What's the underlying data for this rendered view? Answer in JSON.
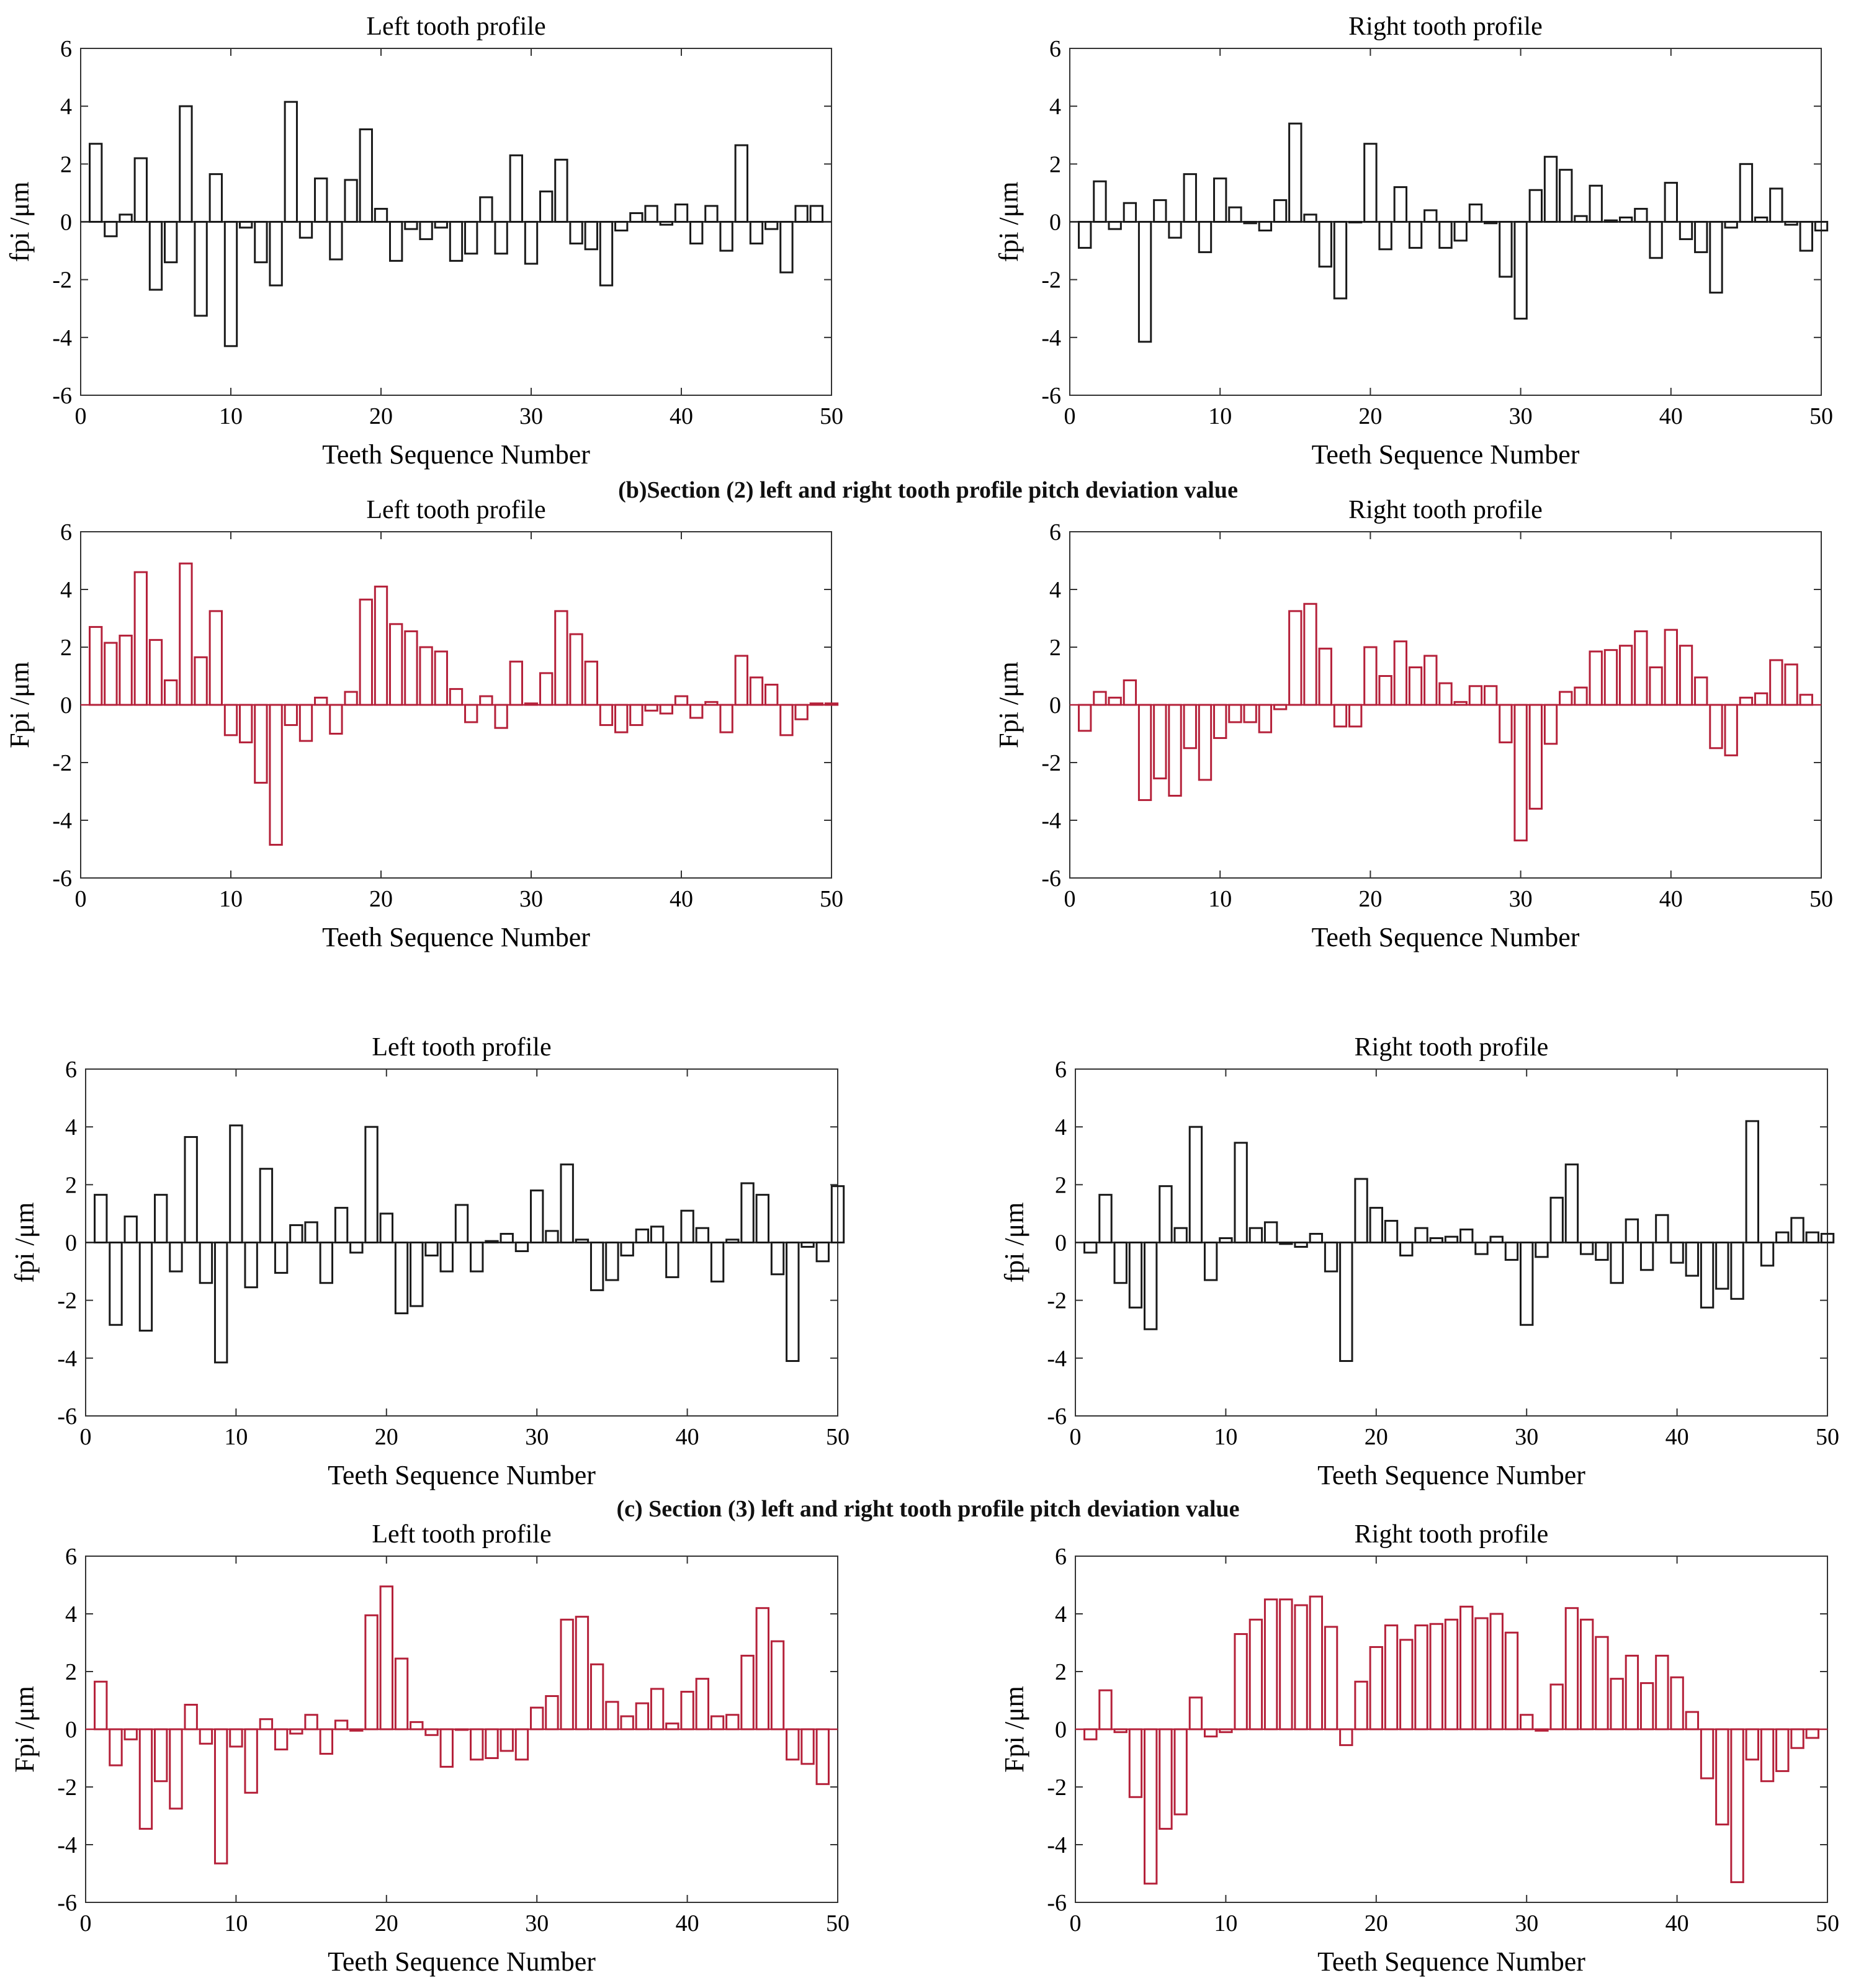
{
  "captions": [
    "(b)Section (2) left and right tooth profile pitch deviation value",
    "(c) Section (3) left and right tooth profile pitch deviation value"
  ],
  "colors": {
    "black_bars": "#1a1a1a",
    "red_bars": "#b5213a",
    "axis": "#333333"
  },
  "chart_data": [
    {
      "type": "bar",
      "title": "Left tooth profile",
      "ylabel": "fpi /μm",
      "xlabel": "Teeth Sequence Number",
      "xlim": [
        0,
        50
      ],
      "ylim": [
        -6,
        6
      ],
      "xticks": [
        0,
        10,
        20,
        30,
        40,
        50
      ],
      "yticks": [
        -6,
        -4,
        -2,
        0,
        2,
        4,
        6
      ],
      "color": "black",
      "x": [
        1,
        2,
        3,
        4,
        5,
        6,
        7,
        8,
        9,
        10,
        11,
        12,
        13,
        14,
        15,
        16,
        17,
        18,
        19,
        20,
        21,
        22,
        23,
        24,
        25,
        26,
        27,
        28,
        29,
        30,
        31,
        32,
        33,
        34,
        35,
        36,
        37,
        38,
        39,
        40,
        41,
        42,
        43,
        44,
        45,
        46,
        47,
        48,
        49
      ],
      "values": [
        2.7,
        -0.5,
        0.25,
        2.2,
        -2.35,
        -1.4,
        4.0,
        -3.25,
        1.65,
        -4.3,
        -0.2,
        -1.4,
        -2.2,
        4.15,
        -0.55,
        1.5,
        -1.3,
        1.45,
        3.2,
        0.45,
        -1.35,
        -0.25,
        -0.6,
        -0.2,
        -1.35,
        -1.1,
        0.85,
        -1.1,
        2.3,
        -1.45,
        1.05,
        2.15,
        -0.75,
        -0.95,
        -2.2,
        -0.3,
        0.3,
        0.55,
        -0.1,
        0.6,
        -0.75,
        0.55,
        -1.0,
        2.65,
        -0.75,
        -0.25,
        -1.75,
        0.55,
        0.55
      ]
    },
    {
      "type": "bar",
      "title": "Right tooth profile",
      "ylabel": "fpi /μm",
      "xlabel": "Teeth Sequence Number",
      "xlim": [
        0,
        50
      ],
      "ylim": [
        -6,
        6
      ],
      "xticks": [
        0,
        10,
        20,
        30,
        40,
        50
      ],
      "yticks": [
        -6,
        -4,
        -2,
        0,
        2,
        4,
        6
      ],
      "color": "black",
      "x": [
        1,
        2,
        3,
        4,
        5,
        6,
        7,
        8,
        9,
        10,
        11,
        12,
        13,
        14,
        15,
        16,
        17,
        18,
        19,
        20,
        21,
        22,
        23,
        24,
        25,
        26,
        27,
        28,
        29,
        30,
        31,
        32,
        33,
        34,
        35,
        36,
        37,
        38,
        39,
        40,
        41,
        42,
        43,
        44,
        45,
        46,
        47,
        48,
        49,
        50
      ],
      "values": [
        -0.9,
        1.4,
        -0.25,
        0.65,
        -4.15,
        0.75,
        -0.55,
        1.65,
        -1.05,
        1.5,
        0.5,
        -0.05,
        -0.3,
        0.75,
        3.4,
        0.25,
        -1.55,
        -2.65,
        0.0,
        2.7,
        -0.95,
        1.2,
        -0.9,
        0.4,
        -0.9,
        -0.65,
        0.6,
        -0.05,
        -1.9,
        -3.35,
        1.1,
        2.25,
        1.8,
        0.2,
        1.25,
        0.05,
        0.15,
        0.45,
        -1.25,
        1.35,
        -0.6,
        -1.05,
        -2.45,
        -0.2,
        2.0,
        0.15,
        1.15,
        -0.1,
        -1.0,
        -0.3
      ]
    },
    {
      "type": "bar",
      "title": "Left tooth profile",
      "ylabel": "Fpi /μm",
      "xlabel": "Teeth Sequence Number",
      "xlim": [
        0,
        50
      ],
      "ylim": [
        -6,
        6
      ],
      "xticks": [
        0,
        10,
        20,
        30,
        40,
        50
      ],
      "yticks": [
        -6,
        -4,
        -2,
        0,
        2,
        4,
        6
      ],
      "color": "red",
      "x": [
        1,
        2,
        3,
        4,
        5,
        6,
        7,
        8,
        9,
        10,
        11,
        12,
        13,
        14,
        15,
        16,
        17,
        18,
        19,
        20,
        21,
        22,
        23,
        24,
        25,
        26,
        27,
        28,
        29,
        30,
        31,
        32,
        33,
        34,
        35,
        36,
        37,
        38,
        39,
        40,
        41,
        42,
        43,
        44,
        45,
        46,
        47,
        48,
        49,
        50
      ],
      "values": [
        2.7,
        2.15,
        2.4,
        4.6,
        2.25,
        0.85,
        4.9,
        1.65,
        3.25,
        -1.05,
        -1.3,
        -2.7,
        -4.85,
        -0.7,
        -1.25,
        0.25,
        -1.0,
        0.45,
        3.65,
        4.1,
        2.8,
        2.55,
        2.0,
        1.85,
        0.55,
        -0.6,
        0.3,
        -0.8,
        1.5,
        0.05,
        1.1,
        3.25,
        2.45,
        1.5,
        -0.7,
        -0.95,
        -0.7,
        -0.2,
        -0.3,
        0.3,
        -0.45,
        0.1,
        -0.95,
        1.7,
        0.95,
        0.7,
        -1.05,
        -0.5,
        0.05,
        0.05
      ]
    },
    {
      "type": "bar",
      "title": "Right tooth profile",
      "ylabel": "Fpi /μm",
      "xlabel": "Teeth Sequence Number",
      "xlim": [
        0,
        50
      ],
      "ylim": [
        -6,
        6
      ],
      "xticks": [
        0,
        10,
        20,
        30,
        40,
        50
      ],
      "yticks": [
        -6,
        -4,
        -2,
        0,
        2,
        4,
        6
      ],
      "color": "red",
      "x": [
        1,
        2,
        3,
        4,
        5,
        6,
        7,
        8,
        9,
        10,
        11,
        12,
        13,
        14,
        15,
        16,
        17,
        18,
        19,
        20,
        21,
        22,
        23,
        24,
        25,
        26,
        27,
        28,
        29,
        30,
        31,
        32,
        33,
        34,
        35,
        36,
        37,
        38,
        39,
        40,
        41,
        42,
        43,
        44,
        45,
        46,
        47,
        48,
        49
      ],
      "values": [
        -0.9,
        0.45,
        0.25,
        0.85,
        -3.3,
        -2.55,
        -3.15,
        -1.5,
        -2.6,
        -1.15,
        -0.6,
        -0.6,
        -0.95,
        -0.15,
        3.25,
        3.5,
        1.95,
        -0.75,
        -0.75,
        2.0,
        1.0,
        2.2,
        1.3,
        1.7,
        0.75,
        0.1,
        0.65,
        0.65,
        -1.3,
        -4.7,
        -3.6,
        -1.35,
        0.45,
        0.6,
        1.85,
        1.9,
        2.05,
        2.55,
        1.3,
        2.6,
        2.05,
        0.95,
        -1.5,
        -1.75,
        0.25,
        0.4,
        1.55,
        1.4,
        0.35
      ]
    },
    {
      "type": "bar",
      "title": "Left tooth profile",
      "ylabel": "fpi /μm",
      "xlabel": "Teeth Sequence Number",
      "xlim": [
        0,
        50
      ],
      "ylim": [
        -6,
        6
      ],
      "xticks": [
        0,
        10,
        20,
        30,
        40,
        50
      ],
      "yticks": [
        -6,
        -4,
        -2,
        0,
        2,
        4,
        6
      ],
      "color": "black",
      "x": [
        1,
        2,
        3,
        4,
        5,
        6,
        7,
        8,
        9,
        10,
        11,
        12,
        13,
        14,
        15,
        16,
        17,
        18,
        19,
        20,
        21,
        22,
        23,
        24,
        25,
        26,
        27,
        28,
        29,
        30,
        31,
        32,
        33,
        34,
        35,
        36,
        37,
        38,
        39,
        40,
        41,
        42,
        43,
        44,
        45,
        46,
        47,
        48,
        49,
        50
      ],
      "values": [
        1.65,
        -2.85,
        0.9,
        -3.05,
        1.65,
        -1.0,
        3.65,
        -1.4,
        -4.15,
        4.05,
        -1.55,
        2.55,
        -1.05,
        0.6,
        0.7,
        -1.4,
        1.2,
        -0.35,
        4.0,
        1.0,
        -2.45,
        -2.2,
        -0.45,
        -1.0,
        1.3,
        -1.0,
        0.05,
        0.3,
        -0.3,
        1.8,
        0.4,
        2.7,
        0.1,
        -1.65,
        -1.3,
        -0.45,
        0.45,
        0.55,
        -1.2,
        1.1,
        0.5,
        -1.35,
        0.1,
        2.05,
        1.65,
        -1.1,
        -4.1,
        -0.15,
        -0.65,
        1.95
      ]
    },
    {
      "type": "bar",
      "title": "Right tooth profile",
      "ylabel": "fpi /μm",
      "xlabel": "Teeth Sequence Number",
      "xlim": [
        0,
        50
      ],
      "ylim": [
        -6,
        6
      ],
      "xticks": [
        0,
        10,
        20,
        30,
        40,
        50
      ],
      "yticks": [
        -6,
        -4,
        -2,
        0,
        2,
        4,
        6
      ],
      "color": "black",
      "x": [
        1,
        2,
        3,
        4,
        5,
        6,
        7,
        8,
        9,
        10,
        11,
        12,
        13,
        14,
        15,
        16,
        17,
        18,
        19,
        20,
        21,
        22,
        23,
        24,
        25,
        26,
        27,
        28,
        29,
        30,
        31,
        32,
        33,
        34,
        35,
        36,
        37,
        38,
        39,
        40,
        41,
        42,
        43,
        44,
        45,
        46,
        47,
        48,
        49,
        50
      ],
      "values": [
        -0.35,
        1.65,
        -1.4,
        -2.25,
        -3.0,
        1.95,
        0.5,
        4.0,
        -1.3,
        0.15,
        3.45,
        0.5,
        0.7,
        -0.05,
        -0.15,
        0.3,
        -1.0,
        -4.1,
        2.2,
        1.2,
        0.75,
        -0.45,
        0.5,
        0.15,
        0.2,
        0.45,
        -0.4,
        0.2,
        -0.6,
        -2.85,
        -0.5,
        1.55,
        2.7,
        -0.4,
        -0.6,
        -1.4,
        0.8,
        -0.95,
        0.95,
        -0.7,
        -1.15,
        -2.25,
        -1.6,
        -1.95,
        4.2,
        -0.8,
        0.35,
        0.85,
        0.35,
        0.3
      ]
    },
    {
      "type": "bar",
      "title": "Left tooth profile",
      "ylabel": "Fpi /μm",
      "xlabel": "Teeth Sequence Number",
      "xlim": [
        0,
        50
      ],
      "ylim": [
        -6,
        6
      ],
      "xticks": [
        0,
        10,
        20,
        30,
        40,
        50
      ],
      "yticks": [
        -6,
        -4,
        -2,
        0,
        2,
        4,
        6
      ],
      "color": "red",
      "x": [
        1,
        2,
        3,
        4,
        5,
        6,
        7,
        8,
        9,
        10,
        11,
        12,
        13,
        14,
        15,
        16,
        17,
        18,
        19,
        20,
        21,
        22,
        23,
        24,
        25,
        26,
        27,
        28,
        29,
        30,
        31,
        32,
        33,
        34,
        35,
        36,
        37,
        38,
        39,
        40,
        41,
        42,
        43,
        44,
        45,
        46,
        47,
        48,
        49
      ],
      "values": [
        1.65,
        -1.25,
        -0.35,
        -3.45,
        -1.8,
        -2.75,
        0.85,
        -0.5,
        -4.65,
        -0.6,
        -2.2,
        0.35,
        -0.7,
        -0.15,
        0.5,
        -0.85,
        0.3,
        -0.05,
        3.95,
        4.95,
        2.45,
        0.25,
        -0.2,
        -1.3,
        0.0,
        -1.05,
        -1.0,
        -0.75,
        -1.05,
        0.75,
        1.15,
        3.8,
        3.9,
        2.25,
        0.95,
        0.45,
        0.9,
        1.4,
        0.2,
        1.3,
        1.75,
        0.45,
        0.5,
        2.55,
        4.2,
        3.05,
        -1.05,
        -1.2,
        -1.9
      ]
    },
    {
      "type": "bar",
      "title": "Right tooth profile",
      "ylabel": "Fpi /μm",
      "xlabel": "Teeth Sequence Number",
      "xlim": [
        0,
        50
      ],
      "ylim": [
        -6,
        6
      ],
      "xticks": [
        0,
        10,
        20,
        30,
        40,
        50
      ],
      "yticks": [
        -6,
        -4,
        -2,
        0,
        2,
        4,
        6
      ],
      "color": "red",
      "x": [
        1,
        2,
        3,
        4,
        5,
        6,
        7,
        8,
        9,
        10,
        11,
        12,
        13,
        14,
        15,
        16,
        17,
        18,
        19,
        20,
        21,
        22,
        23,
        24,
        25,
        26,
        27,
        28,
        29,
        30,
        31,
        32,
        33,
        34,
        35,
        36,
        37,
        38,
        39,
        40,
        41,
        42,
        43,
        44,
        45,
        46,
        47,
        48,
        49
      ],
      "values": [
        -0.35,
        1.35,
        -0.1,
        -2.35,
        -5.35,
        -3.45,
        -2.95,
        1.1,
        -0.25,
        -0.1,
        3.3,
        3.8,
        4.5,
        4.5,
        4.3,
        4.6,
        3.55,
        -0.55,
        1.65,
        2.85,
        3.6,
        3.1,
        3.6,
        3.65,
        3.8,
        4.25,
        3.85,
        4.0,
        3.35,
        0.5,
        -0.05,
        1.55,
        4.2,
        3.8,
        3.2,
        1.75,
        2.55,
        1.6,
        2.55,
        1.8,
        0.6,
        -1.7,
        -3.3,
        -5.3,
        -1.05,
        -1.8,
        -1.45,
        -0.65,
        -0.3
      ]
    }
  ]
}
